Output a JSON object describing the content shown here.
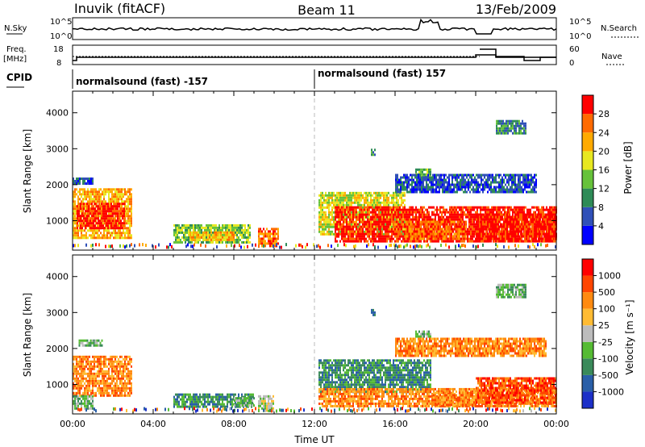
{
  "header": {
    "station": "Inuvik (fitACF)",
    "beam": "Beam 11",
    "date": "13/Feb/2009"
  },
  "strips": {
    "nsky_label": "N.Sky",
    "nsky_ticks": [
      "10^5",
      "10^0"
    ],
    "nsearch_label": "N.Search",
    "freq_label_line1": "Freq.",
    "freq_label_line2": "[MHz]",
    "freq_ticks": [
      "18",
      "8"
    ],
    "nave_ticks": [
      "60",
      "0"
    ],
    "nave_label": "Nave",
    "cpid_label": "CPID",
    "cpid_segments": [
      {
        "label": "normalsound (fast) -157",
        "start_h": 0,
        "end_h": 12
      },
      {
        "label": "normalsound (fast) 157",
        "start_h": 12,
        "end_h": 24
      }
    ]
  },
  "chart_data": [
    {
      "type": "heatmap",
      "name": "power",
      "ylabel": "Slant Range [km]",
      "ylim": [
        180,
        4600
      ],
      "yticks": [
        "1000",
        "2000",
        "3000",
        "4000"
      ],
      "ytick_values": [
        1000,
        2000,
        3000,
        4000
      ],
      "xlim_hours": [
        0,
        24
      ],
      "colorbar": {
        "label": "Power [dB]",
        "ticks": [
          "28",
          "24",
          "20",
          "16",
          "12",
          "8",
          "4"
        ],
        "range": [
          0,
          30
        ],
        "colors": [
          "#0000ff",
          "#3050b8",
          "#2e8b57",
          "#66c23a",
          "#e8e820",
          "#ffaa00",
          "#ff6a00",
          "#ff0000"
        ]
      },
      "regions": [
        {
          "t0": 0.0,
          "t1": 1.0,
          "r0": 2000,
          "r1": 2200,
          "level": 1
        },
        {
          "t0": 0.0,
          "t1": 2.9,
          "r0": 500,
          "r1": 1900,
          "level": 5
        },
        {
          "t0": 0.2,
          "t1": 2.6,
          "r0": 800,
          "r1": 1500,
          "level": 7
        },
        {
          "t0": 5.0,
          "t1": 8.8,
          "r0": 400,
          "r1": 900,
          "level": 3
        },
        {
          "t0": 5.8,
          "t1": 8.0,
          "r0": 450,
          "r1": 700,
          "level": 5
        },
        {
          "t0": 9.2,
          "t1": 10.2,
          "r0": 300,
          "r1": 800,
          "level": 6
        },
        {
          "t0": 12.2,
          "t1": 16.5,
          "r0": 600,
          "r1": 1800,
          "level": 4
        },
        {
          "t0": 13.0,
          "t1": 24.0,
          "r0": 400,
          "r1": 1400,
          "level": 7
        },
        {
          "t0": 16.5,
          "t1": 19.5,
          "r0": 500,
          "r1": 1000,
          "level": 6
        },
        {
          "t0": 20.0,
          "t1": 24.0,
          "r0": 400,
          "r1": 1200,
          "level": 7
        },
        {
          "t0": 14.8,
          "t1": 15.0,
          "r0": 2800,
          "r1": 3000,
          "level": 2
        },
        {
          "t0": 17.0,
          "t1": 17.8,
          "r0": 2200,
          "r1": 2450,
          "level": 3
        },
        {
          "t0": 21.0,
          "t1": 22.5,
          "r0": 3400,
          "r1": 3800,
          "level": 2
        },
        {
          "t0": 16.0,
          "t1": 23.0,
          "r0": 1800,
          "r1": 2300,
          "level": 1
        }
      ]
    },
    {
      "type": "heatmap",
      "name": "velocity",
      "ylabel": "Slant Range [km]",
      "ylim": [
        180,
        4600
      ],
      "yticks": [
        "1000",
        "2000",
        "3000",
        "4000"
      ],
      "ytick_values": [
        1000,
        2000,
        3000,
        4000
      ],
      "xlabel": "Time UT",
      "xticks": [
        "00:00",
        "04:00",
        "08:00",
        "12:00",
        "16:00",
        "20:00",
        "00:00"
      ],
      "xtick_hours": [
        0,
        4,
        8,
        12,
        16,
        20,
        24
      ],
      "xlim_hours": [
        0,
        24
      ],
      "colorbar": {
        "label": "Velocity [m s⁻¹]",
        "ticks": [
          "1000",
          "500",
          "100",
          "25",
          "-25",
          "-100",
          "-500",
          "-1000"
        ],
        "colors": [
          "#1c30c8",
          "#2a5fa8",
          "#3a8a5a",
          "#55bb33",
          "#bcbcbc",
          "#ffbb33",
          "#ff8a10",
          "#ff4500",
          "#ff0000"
        ]
      },
      "regions": [
        {
          "t0": 0.3,
          "t1": 1.5,
          "r0": 2050,
          "r1": 2250,
          "level": 3
        },
        {
          "t0": 0.0,
          "t1": 2.9,
          "r0": 700,
          "r1": 1800,
          "level": 6
        },
        {
          "t0": 0.0,
          "t1": 1.0,
          "r0": 300,
          "r1": 700,
          "level": 3
        },
        {
          "t0": 5.0,
          "t1": 9.0,
          "r0": 350,
          "r1": 750,
          "level": 2
        },
        {
          "t0": 8.0,
          "t1": 9.0,
          "r0": 400,
          "r1": 650,
          "level": 3
        },
        {
          "t0": 9.2,
          "t1": 10.0,
          "r0": 250,
          "r1": 700,
          "level": 4
        },
        {
          "t0": 12.2,
          "t1": 17.8,
          "r0": 800,
          "r1": 1700,
          "level": 2
        },
        {
          "t0": 12.2,
          "t1": 24.0,
          "r0": 400,
          "r1": 900,
          "level": 6
        },
        {
          "t0": 17.8,
          "t1": 20.0,
          "r0": 400,
          "r1": 800,
          "level": 6
        },
        {
          "t0": 20.0,
          "t1": 24.0,
          "r0": 500,
          "r1": 1200,
          "level": 7
        },
        {
          "t0": 14.8,
          "t1": 15.0,
          "r0": 2900,
          "r1": 3100,
          "level": 2
        },
        {
          "t0": 17.0,
          "t1": 17.8,
          "r0": 2300,
          "r1": 2500,
          "level": 3
        },
        {
          "t0": 21.0,
          "t1": 22.5,
          "r0": 3400,
          "r1": 3800,
          "level": 3
        },
        {
          "t0": 16.0,
          "t1": 23.5,
          "r0": 1800,
          "r1": 2300,
          "level": 6
        }
      ]
    }
  ]
}
